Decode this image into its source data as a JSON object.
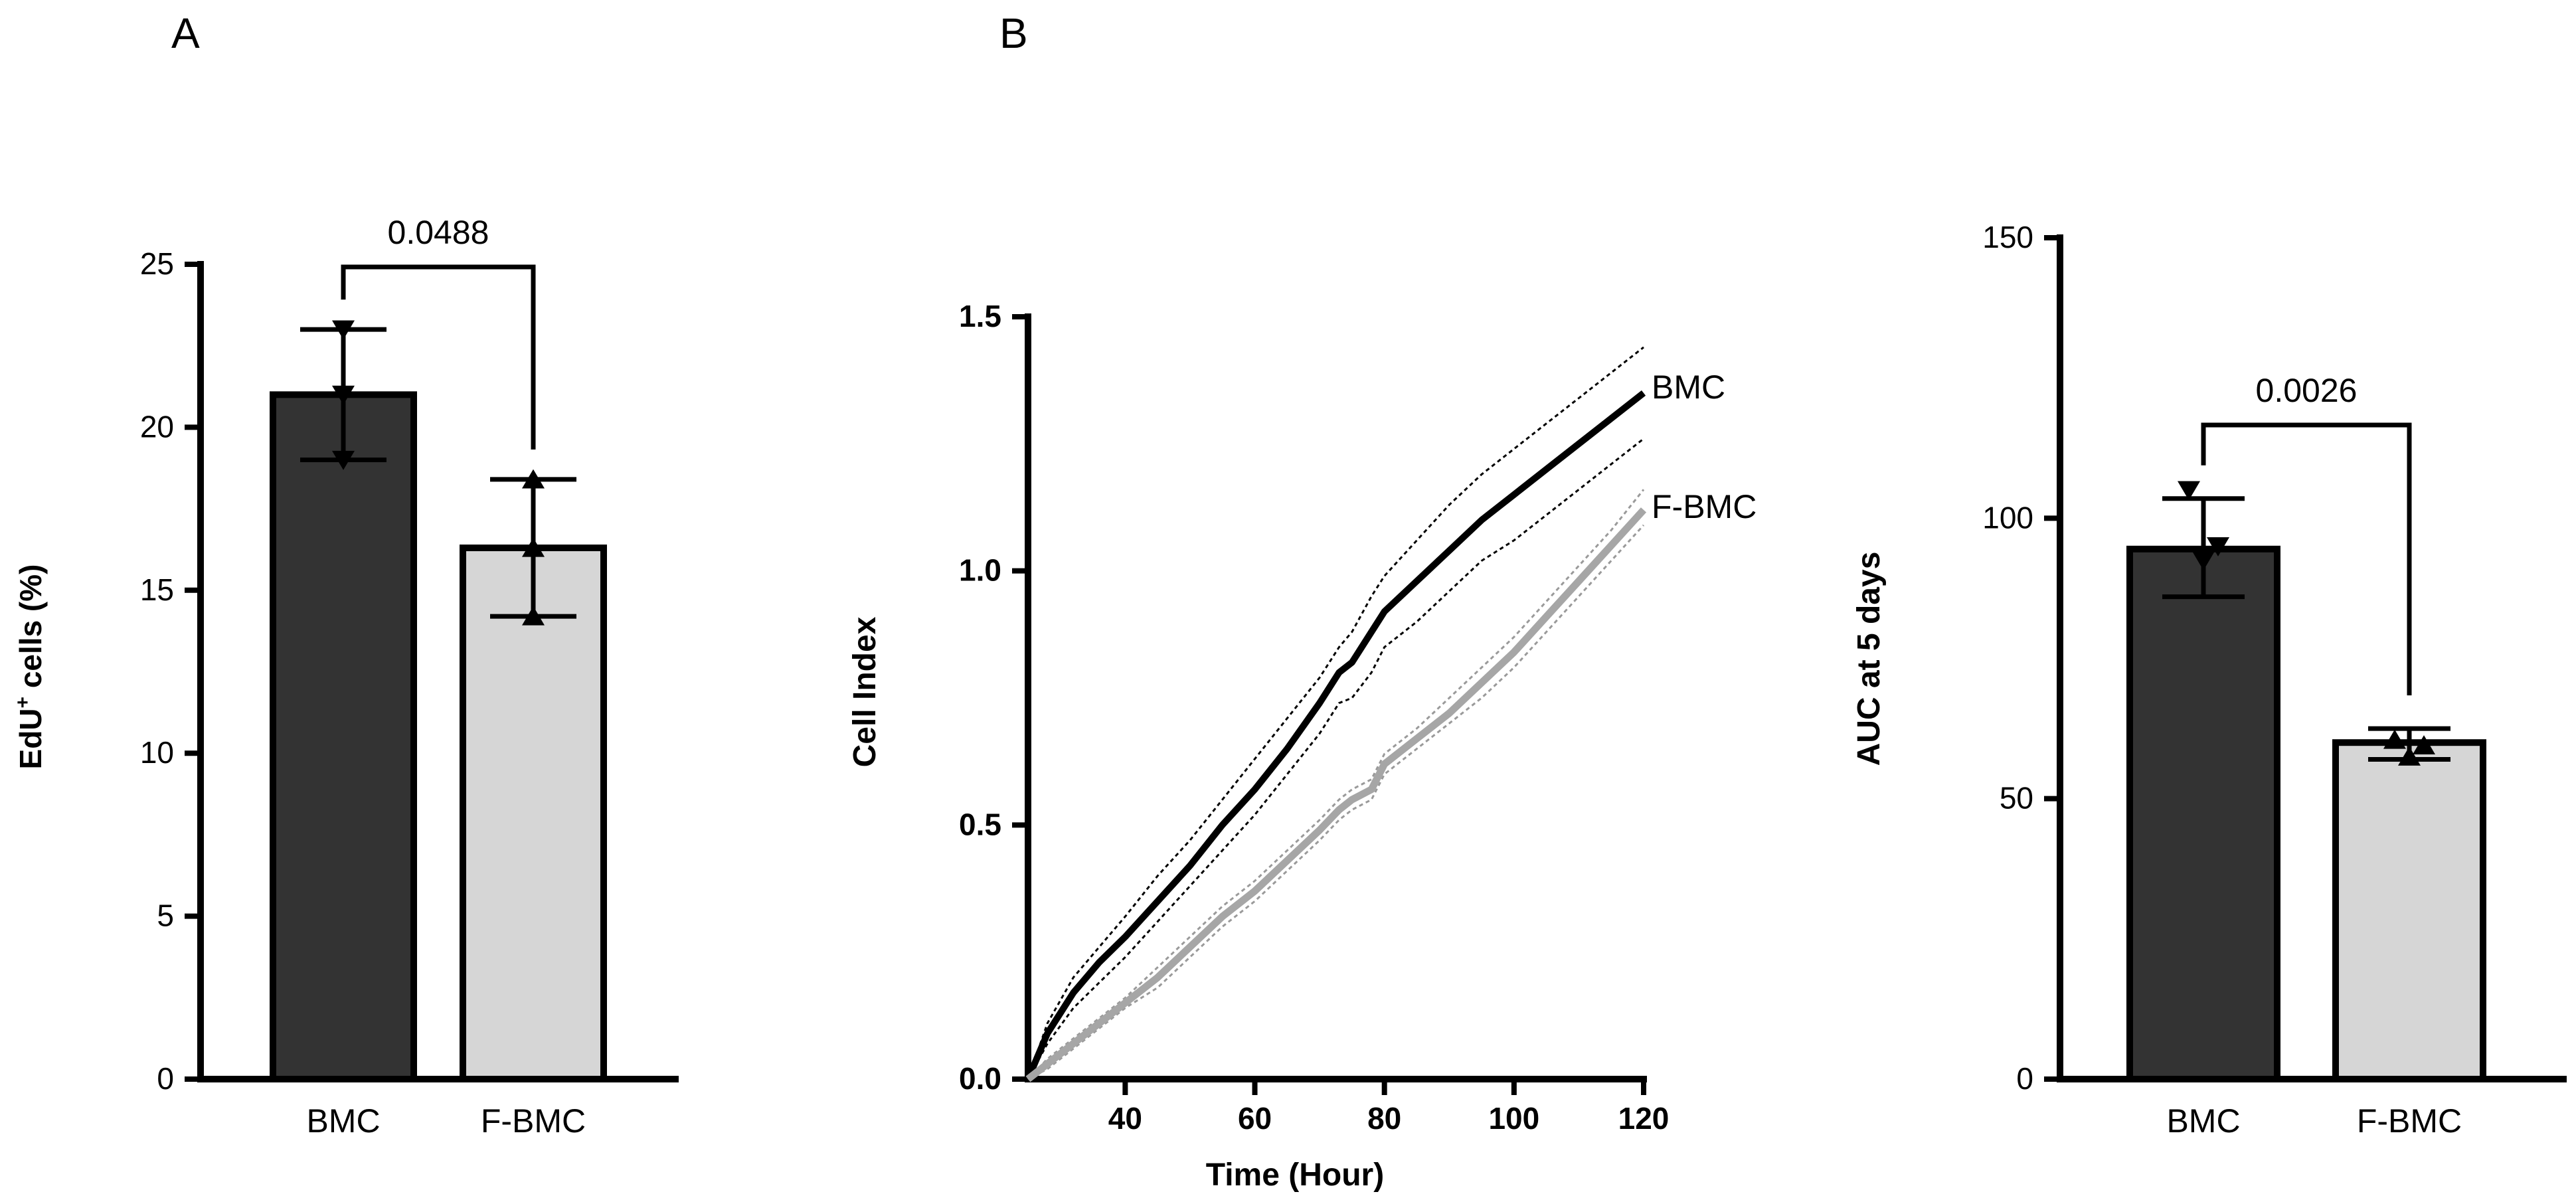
{
  "panels": {
    "a": "A",
    "b": "B"
  },
  "colors": {
    "bmc": "#333333",
    "fbmc": "#d6d6d6",
    "fbmc_line": "#a6a6a6",
    "axis": "#000000"
  },
  "chart_data": [
    {
      "id": "A",
      "type": "bar",
      "title": "",
      "categories": [
        "BMC",
        "F-BMC"
      ],
      "values": [
        21.0,
        16.3
      ],
      "error": [
        {
          "low": 19.0,
          "high": 23.0
        },
        {
          "low": 14.2,
          "high": 18.4
        }
      ],
      "points": [
        [
          23.0,
          21.0,
          19.0
        ],
        [
          14.2,
          16.3,
          18.4
        ]
      ],
      "markers": [
        "triangle-down",
        "triangle-up"
      ],
      "ylabel_main": "EdU",
      "ylabel_sup": "+",
      "ylabel_rest": " cells (%)",
      "xlabel": "",
      "ylim": [
        0,
        25
      ],
      "yticks": [
        0,
        5,
        10,
        15,
        20,
        25
      ],
      "ytick_labels": [
        "0",
        "5",
        "10",
        "15",
        "20",
        "25"
      ],
      "pvalue": "0.0488"
    },
    {
      "id": "B-line",
      "type": "line",
      "title": "",
      "xlabel": "Time (Hour)",
      "ylabel": "Cell Index",
      "xlim": [
        25,
        120
      ],
      "ylim": [
        0,
        1.5
      ],
      "xticks": [
        40,
        60,
        80,
        100,
        120
      ],
      "xtick_labels": [
        "40",
        "60",
        "80",
        "100",
        "120"
      ],
      "yticks": [
        0,
        0.5,
        1.0,
        1.5
      ],
      "ytick_labels": [
        "0.0",
        "0.5",
        "1.0",
        "1.5"
      ],
      "series": [
        {
          "name": "BMC",
          "x": [
            25,
            28,
            32,
            36,
            40,
            45,
            50,
            55,
            60,
            65,
            70,
            73,
            75,
            78,
            80,
            85,
            90,
            95,
            100,
            105,
            110,
            115,
            120
          ],
          "y": [
            0.0,
            0.09,
            0.17,
            0.23,
            0.28,
            0.35,
            0.42,
            0.5,
            0.57,
            0.65,
            0.74,
            0.8,
            0.82,
            0.88,
            0.92,
            0.98,
            1.04,
            1.1,
            1.15,
            1.2,
            1.25,
            1.3,
            1.35
          ],
          "upper": [
            0.0,
            0.11,
            0.2,
            0.26,
            0.32,
            0.4,
            0.47,
            0.55,
            0.63,
            0.71,
            0.79,
            0.85,
            0.88,
            0.95,
            0.99,
            1.06,
            1.13,
            1.19,
            1.24,
            1.29,
            1.34,
            1.39,
            1.44
          ],
          "lower": [
            0.0,
            0.07,
            0.14,
            0.19,
            0.24,
            0.31,
            0.38,
            0.45,
            0.52,
            0.6,
            0.68,
            0.74,
            0.75,
            0.8,
            0.85,
            0.9,
            0.96,
            1.02,
            1.06,
            1.11,
            1.16,
            1.21,
            1.26
          ]
        },
        {
          "name": "F-BMC",
          "x": [
            25,
            28,
            32,
            36,
            40,
            45,
            50,
            55,
            60,
            65,
            70,
            73,
            75,
            78,
            80,
            85,
            90,
            95,
            100,
            105,
            110,
            115,
            120
          ],
          "y": [
            0.0,
            0.03,
            0.07,
            0.11,
            0.15,
            0.2,
            0.26,
            0.32,
            0.37,
            0.43,
            0.49,
            0.53,
            0.55,
            0.57,
            0.62,
            0.67,
            0.72,
            0.78,
            0.84,
            0.91,
            0.98,
            1.05,
            1.12
          ],
          "upper": [
            0.0,
            0.04,
            0.08,
            0.12,
            0.16,
            0.22,
            0.28,
            0.34,
            0.39,
            0.45,
            0.51,
            0.55,
            0.57,
            0.59,
            0.64,
            0.69,
            0.75,
            0.81,
            0.87,
            0.94,
            1.01,
            1.08,
            1.16
          ],
          "lower": [
            0.0,
            0.02,
            0.06,
            0.1,
            0.14,
            0.18,
            0.24,
            0.3,
            0.35,
            0.41,
            0.47,
            0.51,
            0.53,
            0.55,
            0.6,
            0.65,
            0.7,
            0.75,
            0.81,
            0.88,
            0.95,
            1.02,
            1.09
          ]
        }
      ]
    },
    {
      "id": "B-auc",
      "type": "bar",
      "title": "",
      "categories": [
        "BMC",
        "F-BMC"
      ],
      "values": [
        94.5,
        60.0
      ],
      "error": [
        {
          "low": 86.0,
          "high": 103.5
        },
        {
          "low": 57.0,
          "high": 62.5
        }
      ],
      "points": [
        [
          105.0,
          92.5,
          95.0
        ],
        [
          60.5,
          57.5,
          59.5
        ]
      ],
      "markers": [
        "triangle-down",
        "triangle-up"
      ],
      "xlabel": "",
      "ylabel": "AUC at 5 days",
      "ylim": [
        0,
        150
      ],
      "yticks": [
        0,
        50,
        100,
        150
      ],
      "ytick_labels": [
        "0",
        "50",
        "100",
        "150"
      ],
      "pvalue": "0.0026"
    }
  ]
}
